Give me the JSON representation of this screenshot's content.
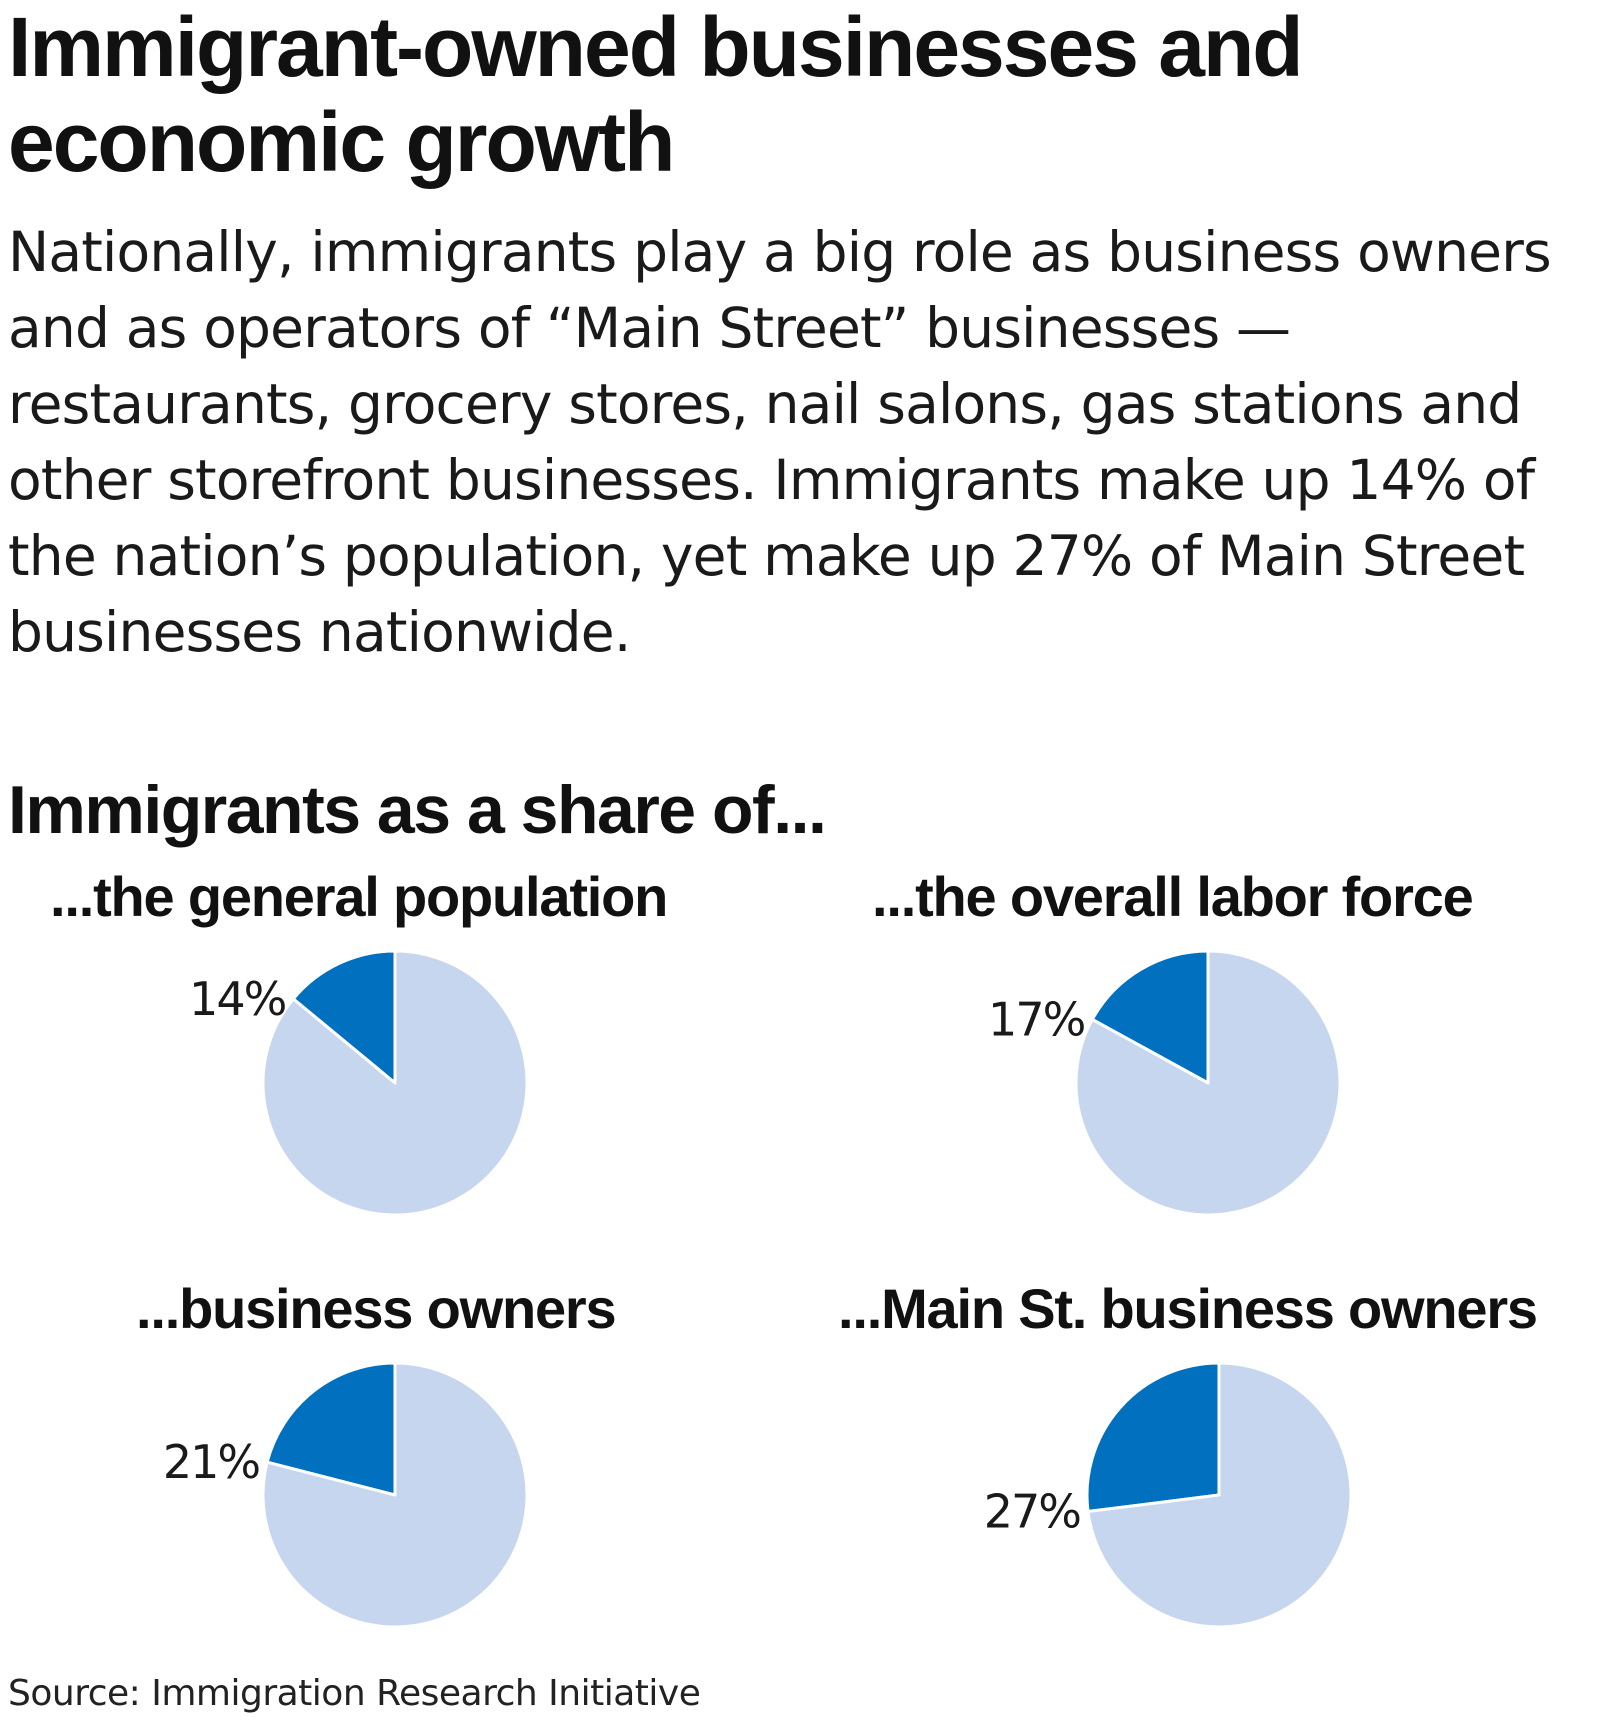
{
  "title": "Immigrant-owned businesses and economic growth",
  "intro": "Nationally, immigrants play a big role as business owners and as operators of “Main Street” businesses — restaurants, grocery stores, nail salons, gas stations and other storefront businesses. Immigrants make up 14% of the nation’s population, yet make up 27% of Main Street businesses nationwide.",
  "subtitle": "Immigrants as a share of...",
  "source": "Source: Immigration Research Initiative",
  "colors": {
    "immigrant_share": "#0070bf",
    "remainder": "#c7d6ef"
  },
  "chart_data": [
    {
      "type": "pie",
      "title": "...the general population",
      "slices": [
        {
          "label": "14%",
          "value": 14
        },
        {
          "label": "",
          "value": 86
        }
      ]
    },
    {
      "type": "pie",
      "title": "...the overall labor force",
      "slices": [
        {
          "label": "17%",
          "value": 17
        },
        {
          "label": "",
          "value": 83
        }
      ]
    },
    {
      "type": "pie",
      "title": "...business owners",
      "slices": [
        {
          "label": "21%",
          "value": 21
        },
        {
          "label": "",
          "value": 79
        }
      ]
    },
    {
      "type": "pie",
      "title": "...Main St. business owners",
      "slices": [
        {
          "label": "27%",
          "value": 27
        },
        {
          "label": "",
          "value": 73
        }
      ]
    }
  ]
}
